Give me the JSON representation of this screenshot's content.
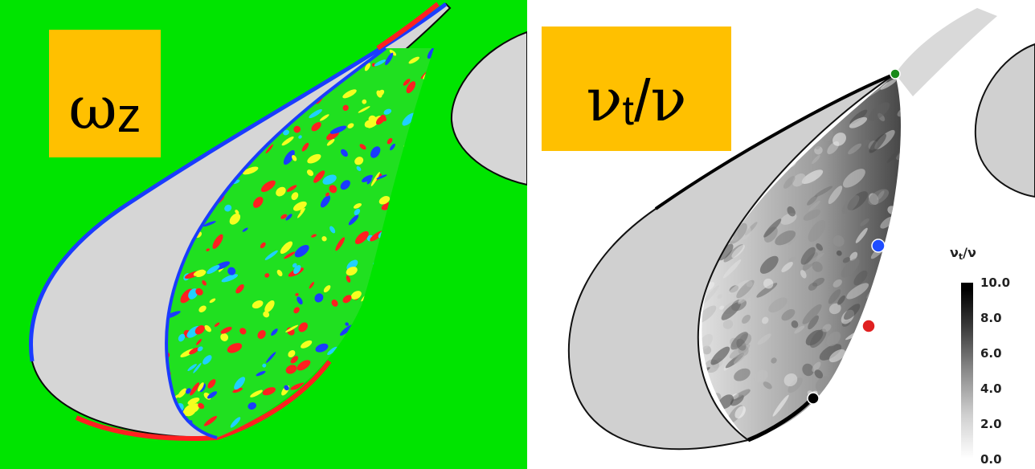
{
  "left_panel": {
    "label": {
      "symbol": "ω",
      "subscript": "z"
    },
    "colors": {
      "background": "#00e400",
      "body": "#d6d6d6",
      "positive": "#ff2020",
      "negative": "#1a3cff",
      "mid": "#f5ff20",
      "cyan": "#20d0ff"
    }
  },
  "right_panel": {
    "label": {
      "symbol": "ν",
      "subscript": "t",
      "slash": "/",
      "denominator": "ν"
    },
    "colorbar": {
      "title_symbol": "ν",
      "title_sub": "t",
      "title_rest": "/ν",
      "ticks": [
        "10.0",
        "8.0",
        "6.0",
        "4.0",
        "2.0",
        "0.0"
      ]
    },
    "markers": [
      {
        "name": "green",
        "color": "#1a8a1a"
      },
      {
        "name": "blue",
        "color": "#1f4dff"
      },
      {
        "name": "red",
        "color": "#e02020"
      },
      {
        "name": "black",
        "color": "#000000"
      }
    ]
  }
}
